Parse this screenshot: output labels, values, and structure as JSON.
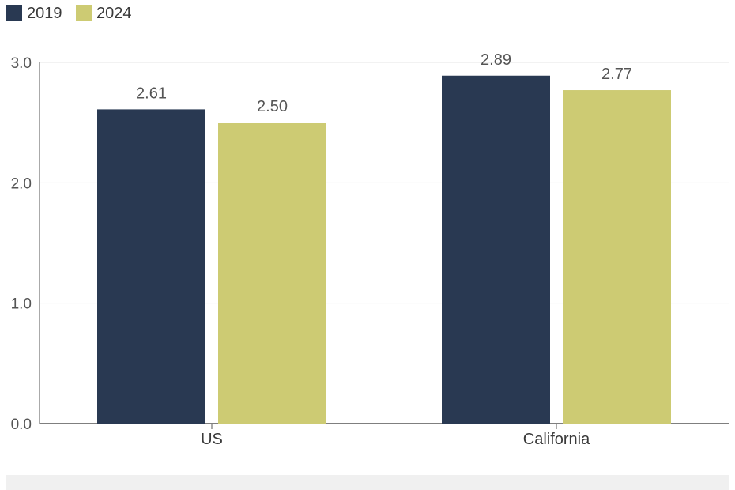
{
  "chart_data": {
    "type": "bar",
    "categories": [
      "US",
      "California"
    ],
    "series": [
      {
        "name": "2019",
        "values": [
          2.61,
          2.89
        ],
        "labels": [
          "2.61",
          "2.89"
        ],
        "color": "#293952"
      },
      {
        "name": "2024",
        "values": [
          2.5,
          2.77
        ],
        "labels": [
          "2.50",
          "2.77"
        ],
        "color": "#cdcb73"
      }
    ],
    "title": "",
    "xlabel": "",
    "ylabel": "",
    "ylim": [
      0,
      3.0
    ],
    "yticks": [
      "0.0",
      "1.0",
      "2.0",
      "3.0"
    ],
    "ytick_values": [
      0,
      1,
      2,
      3
    ],
    "grid": true,
    "legend": "top-left",
    "colors": {
      "grid": "#e6e6e6",
      "axis": "#555555"
    }
  }
}
